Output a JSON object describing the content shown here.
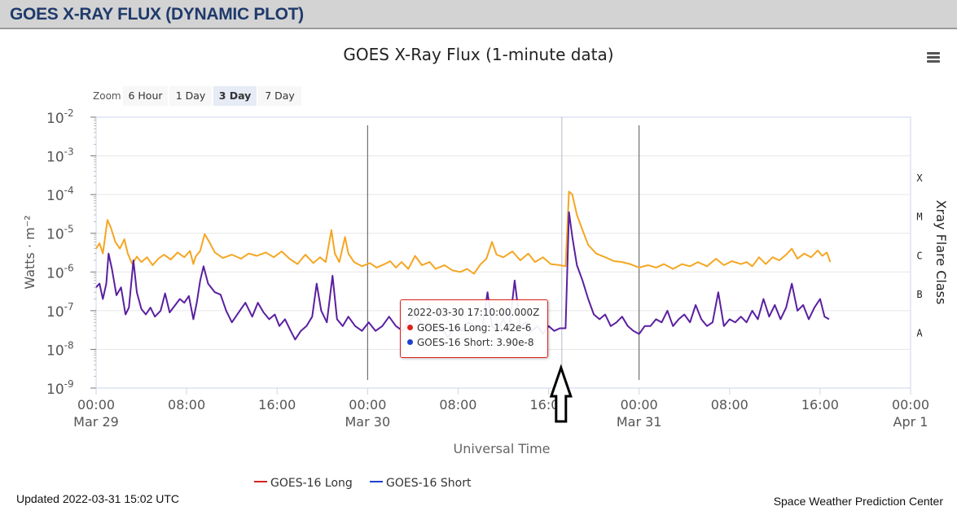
{
  "header": {
    "title": "GOES X-RAY FLUX (DYNAMIC PLOT)"
  },
  "zoom": {
    "label": "Zoom",
    "buttons": [
      {
        "label": "6 Hour",
        "active": false
      },
      {
        "label": "1 Day",
        "active": false
      },
      {
        "label": "3 Day",
        "active": true
      },
      {
        "label": "7 Day",
        "active": false
      }
    ]
  },
  "tooltip": {
    "time": "2022-03-30 17:10:00.000Z",
    "long_label": "GOES-16 Long",
    "long_value": ": 1.42e-6",
    "short_label": "GOES-16 Short",
    "short_value": ": 3.90e-8",
    "border_color": "#e0201a"
  },
  "footer": {
    "updated": "Updated 2022-03-31 15:02 UTC",
    "credit": "Space Weather Prediction Center"
  },
  "colors": {
    "long_active": "#f5a623",
    "long_legend": "#d62020",
    "short_active": "#5a1fa0",
    "short_legend": "#1f3fd0"
  },
  "chart_data": {
    "type": "line",
    "title": "GOES X-Ray Flux (1-minute data)",
    "xlabel": "Universal Time",
    "ylabel": "Watts · m⁻²",
    "y2label": "Xray Flare Class",
    "y_scale": "log",
    "ylim": [
      1e-09,
      0.01
    ],
    "y_ticks": [
      {
        "base": "10",
        "exp": "-2"
      },
      {
        "base": "10",
        "exp": "-3"
      },
      {
        "base": "10",
        "exp": "-4"
      },
      {
        "base": "10",
        "exp": "-5"
      },
      {
        "base": "10",
        "exp": "-6"
      },
      {
        "base": "10",
        "exp": "-7"
      },
      {
        "base": "10",
        "exp": "-8"
      },
      {
        "base": "10",
        "exp": "-9"
      }
    ],
    "flare_classes": [
      {
        "label": "X",
        "flux": 0.0001
      },
      {
        "label": "M",
        "flux": 1e-05
      },
      {
        "label": "C",
        "flux": 1e-06
      },
      {
        "label": "B",
        "flux": 1e-07
      },
      {
        "label": "A",
        "flux": 1e-08
      }
    ],
    "xlim_hours": [
      0,
      72
    ],
    "x_ticks": [
      {
        "hour": 0,
        "label": "00:00",
        "date": "Mar 29"
      },
      {
        "hour": 8,
        "label": "08:00",
        "date": ""
      },
      {
        "hour": 16,
        "label": "16:00",
        "date": ""
      },
      {
        "hour": 24,
        "label": "00:00",
        "date": "Mar 30"
      },
      {
        "hour": 32,
        "label": "08:00",
        "date": ""
      },
      {
        "hour": 40,
        "label": "16:00",
        "date": ""
      },
      {
        "hour": 48,
        "label": "00:00",
        "date": "Mar 31"
      },
      {
        "hour": 56,
        "label": "08:00",
        "date": ""
      },
      {
        "hour": 64,
        "label": "16:00",
        "date": ""
      },
      {
        "hour": 72,
        "label": "00:00",
        "date": "Apr 1"
      }
    ],
    "day_lines_hours": [
      24,
      48
    ],
    "crosshair_hour": 41.17,
    "series": [
      {
        "name": "GOES-16 Long",
        "points": [
          [
            0.0,
            4e-06
          ],
          [
            0.3,
            5.5e-06
          ],
          [
            0.6,
            3e-06
          ],
          [
            1.0,
            2.2e-05
          ],
          [
            1.3,
            1.4e-05
          ],
          [
            1.7,
            6e-06
          ],
          [
            2.1,
            4e-06
          ],
          [
            2.5,
            7e-06
          ],
          [
            2.8,
            3e-06
          ],
          [
            3.2,
            1.6e-06
          ],
          [
            3.6,
            2.5e-06
          ],
          [
            4.0,
            1.8e-06
          ],
          [
            4.5,
            2.4e-06
          ],
          [
            5.0,
            1.5e-06
          ],
          [
            5.5,
            2.2e-06
          ],
          [
            6.0,
            2.8e-06
          ],
          [
            6.6,
            2.1e-06
          ],
          [
            7.2,
            3.2e-06
          ],
          [
            7.8,
            2.4e-06
          ],
          [
            8.3,
            3.5e-06
          ],
          [
            8.6,
            1.6e-06
          ],
          [
            8.8,
            2.5e-06
          ],
          [
            9.2,
            3.5e-06
          ],
          [
            9.6,
            9.5e-06
          ],
          [
            10.0,
            6e-06
          ],
          [
            10.5,
            3.2e-06
          ],
          [
            11.2,
            2.3e-06
          ],
          [
            12.0,
            2.8e-06
          ],
          [
            12.8,
            2.2e-06
          ],
          [
            13.5,
            3e-06
          ],
          [
            14.2,
            2.6e-06
          ],
          [
            15.0,
            3.2e-06
          ],
          [
            15.7,
            2.4e-06
          ],
          [
            16.4,
            3.4e-06
          ],
          [
            17.1,
            2.2e-06
          ],
          [
            17.8,
            1.6e-06
          ],
          [
            18.5,
            2.8e-06
          ],
          [
            19.2,
            1.7e-06
          ],
          [
            19.8,
            2.4e-06
          ],
          [
            20.3,
            1.8e-06
          ],
          [
            20.8,
            1.2e-05
          ],
          [
            21.1,
            3e-06
          ],
          [
            21.5,
            1.8e-06
          ],
          [
            22.0,
            8e-06
          ],
          [
            22.3,
            3e-06
          ],
          [
            22.8,
            1.8e-06
          ],
          [
            23.5,
            1.4e-06
          ],
          [
            24.2,
            1.7e-06
          ],
          [
            24.8,
            1.3e-06
          ],
          [
            25.5,
            1.6e-06
          ],
          [
            26.0,
            1.9e-06
          ],
          [
            26.5,
            1.3e-06
          ],
          [
            27.0,
            1.8e-06
          ],
          [
            27.6,
            1.2e-06
          ],
          [
            28.2,
            2.6e-06
          ],
          [
            28.8,
            1.5e-06
          ],
          [
            29.5,
            1.8e-06
          ],
          [
            30.0,
            1.2e-06
          ],
          [
            30.8,
            1.5e-06
          ],
          [
            31.5,
            1.1e-06
          ],
          [
            32.2,
            1e-06
          ],
          [
            32.8,
            1.2e-06
          ],
          [
            33.4,
            9e-07
          ],
          [
            34.0,
            1.6e-06
          ],
          [
            34.5,
            2.2e-06
          ],
          [
            35.0,
            6e-06
          ],
          [
            35.4,
            2.8e-06
          ],
          [
            36.0,
            2.4e-06
          ],
          [
            36.8,
            3.4e-06
          ],
          [
            37.5,
            2e-06
          ],
          [
            38.2,
            3e-06
          ],
          [
            38.8,
            1.8e-06
          ],
          [
            39.5,
            2.4e-06
          ],
          [
            40.2,
            1.6e-06
          ],
          [
            41.0,
            1.5e-06
          ],
          [
            41.5,
            1.4e-06
          ],
          [
            41.8,
            0.00012
          ],
          [
            42.1,
            0.0001
          ],
          [
            42.5,
            3e-05
          ],
          [
            43.0,
            1.2e-05
          ],
          [
            43.5,
            5e-06
          ],
          [
            44.2,
            3e-06
          ],
          [
            45.0,
            2.4e-06
          ],
          [
            45.8,
            1.9e-06
          ],
          [
            46.5,
            1.8e-06
          ],
          [
            47.2,
            1.6e-06
          ],
          [
            48.0,
            1.3e-06
          ],
          [
            48.8,
            1.5e-06
          ],
          [
            49.5,
            1.3e-06
          ],
          [
            50.2,
            1.6e-06
          ],
          [
            51.0,
            1.2e-06
          ],
          [
            51.8,
            1.6e-06
          ],
          [
            52.5,
            1.4e-06
          ],
          [
            53.2,
            1.8e-06
          ],
          [
            54.0,
            1.4e-06
          ],
          [
            54.8,
            2.2e-06
          ],
          [
            55.5,
            1.5e-06
          ],
          [
            56.2,
            1.9e-06
          ],
          [
            57.0,
            1.6e-06
          ],
          [
            57.5,
            1.8e-06
          ],
          [
            58.0,
            1.4e-06
          ],
          [
            58.6,
            2.4e-06
          ],
          [
            59.2,
            1.6e-06
          ],
          [
            59.8,
            2.4e-06
          ],
          [
            60.4,
            2e-06
          ],
          [
            61.0,
            2.8e-06
          ],
          [
            61.5,
            4e-06
          ],
          [
            62.0,
            2.2e-06
          ],
          [
            62.6,
            3e-06
          ],
          [
            63.2,
            2.4e-06
          ],
          [
            63.8,
            3.6e-06
          ],
          [
            64.2,
            2.6e-06
          ],
          [
            64.6,
            3.2e-06
          ],
          [
            64.9,
            1.8e-06
          ]
        ]
      },
      {
        "name": "GOES-16 Short",
        "points": [
          [
            0.0,
            4e-07
          ],
          [
            0.3,
            5e-07
          ],
          [
            0.6,
            2e-07
          ],
          [
            0.9,
            5e-07
          ],
          [
            1.1,
            3e-06
          ],
          [
            1.4,
            1.2e-06
          ],
          [
            1.8,
            2.5e-07
          ],
          [
            2.2,
            4e-07
          ],
          [
            2.6,
            8e-08
          ],
          [
            2.9,
            1.2e-07
          ],
          [
            3.3,
            2e-06
          ],
          [
            3.6,
            3e-07
          ],
          [
            4.0,
            1.1e-07
          ],
          [
            4.4,
            8e-08
          ],
          [
            4.8,
            1.2e-07
          ],
          [
            5.2,
            7e-08
          ],
          [
            5.7,
            1e-07
          ],
          [
            6.1,
            2.8e-07
          ],
          [
            6.5,
            9e-08
          ],
          [
            7.0,
            1.4e-07
          ],
          [
            7.4,
            2e-07
          ],
          [
            7.8,
            1.6e-07
          ],
          [
            8.2,
            2.4e-07
          ],
          [
            8.6,
            6e-08
          ],
          [
            8.9,
            1.6e-07
          ],
          [
            9.2,
            6e-07
          ],
          [
            9.5,
            1.4e-06
          ],
          [
            9.9,
            5e-07
          ],
          [
            10.5,
            3e-07
          ],
          [
            11.0,
            2.6e-07
          ],
          [
            11.5,
            1e-07
          ],
          [
            12.0,
            5e-08
          ],
          [
            12.6,
            9e-08
          ],
          [
            13.2,
            1.6e-07
          ],
          [
            13.8,
            7e-08
          ],
          [
            14.3,
            1.6e-07
          ],
          [
            14.8,
            9e-08
          ],
          [
            15.3,
            6e-08
          ],
          [
            15.8,
            8e-08
          ],
          [
            16.2,
            4e-08
          ],
          [
            16.7,
            6e-08
          ],
          [
            17.2,
            3e-08
          ],
          [
            17.6,
            1.8e-08
          ],
          [
            18.1,
            3e-08
          ],
          [
            18.6,
            4e-08
          ],
          [
            19.1,
            7e-08
          ],
          [
            19.5,
            5e-07
          ],
          [
            19.9,
            1e-07
          ],
          [
            20.4,
            5e-08
          ],
          [
            20.9,
            8e-07
          ],
          [
            21.3,
            6e-08
          ],
          [
            21.8,
            4e-08
          ],
          [
            22.3,
            7e-08
          ],
          [
            22.9,
            4e-08
          ],
          [
            23.5,
            3e-08
          ],
          [
            24.1,
            5e-08
          ],
          [
            24.7,
            3e-08
          ],
          [
            25.3,
            4e-08
          ],
          [
            25.9,
            7e-08
          ],
          [
            26.5,
            4e-08
          ],
          [
            27.1,
            3e-08
          ],
          [
            27.6,
            5e-08
          ],
          [
            28.2,
            8e-08
          ],
          [
            28.7,
            5e-08
          ],
          [
            29.3,
            4e-08
          ],
          [
            29.9,
            3e-08
          ],
          [
            30.5,
            4e-08
          ],
          [
            31.1,
            2e-08
          ],
          [
            31.7,
            4e-08
          ],
          [
            32.3,
            3e-08
          ],
          [
            32.9,
            5e-08
          ],
          [
            33.5,
            4e-08
          ],
          [
            34.1,
            3e-08
          ],
          [
            34.6,
            3e-07
          ],
          [
            35.0,
            4e-08
          ],
          [
            35.5,
            3e-08
          ],
          [
            36.0,
            6e-08
          ],
          [
            36.5,
            3e-08
          ],
          [
            37.0,
            6e-07
          ],
          [
            37.5,
            4e-08
          ],
          [
            38.0,
            5e-08
          ],
          [
            38.5,
            3e-08
          ],
          [
            39.0,
            4e-08
          ],
          [
            39.5,
            2.5e-08
          ],
          [
            40.0,
            4e-08
          ],
          [
            40.5,
            3e-08
          ],
          [
            41.0,
            3.5e-08
          ],
          [
            41.5,
            3.5e-08
          ],
          [
            41.8,
            3.5e-05
          ],
          [
            42.1,
            8e-06
          ],
          [
            42.5,
            1.5e-06
          ],
          [
            43.0,
            6e-07
          ],
          [
            43.5,
            2e-07
          ],
          [
            44.0,
            8e-08
          ],
          [
            44.5,
            6e-08
          ],
          [
            45.0,
            8e-08
          ],
          [
            45.5,
            4e-08
          ],
          [
            46.0,
            5e-08
          ],
          [
            46.5,
            7e-08
          ],
          [
            47.0,
            4e-08
          ],
          [
            47.5,
            3e-08
          ],
          [
            48.0,
            2.5e-08
          ],
          [
            48.5,
            4e-08
          ],
          [
            49.0,
            4e-08
          ],
          [
            49.5,
            6e-08
          ],
          [
            50.0,
            5e-08
          ],
          [
            50.5,
            1e-07
          ],
          [
            51.0,
            4e-08
          ],
          [
            51.5,
            6e-08
          ],
          [
            52.0,
            8e-08
          ],
          [
            52.5,
            5e-08
          ],
          [
            53.0,
            1.4e-07
          ],
          [
            53.5,
            6e-08
          ],
          [
            54.0,
            4e-08
          ],
          [
            54.5,
            5e-08
          ],
          [
            55.0,
            3e-07
          ],
          [
            55.5,
            4e-08
          ],
          [
            56.0,
            6e-08
          ],
          [
            56.5,
            5e-08
          ],
          [
            57.0,
            7e-08
          ],
          [
            57.5,
            5e-08
          ],
          [
            58.0,
            1e-07
          ],
          [
            58.5,
            6e-08
          ],
          [
            59.0,
            2e-07
          ],
          [
            59.5,
            7e-08
          ],
          [
            60.0,
            1.4e-07
          ],
          [
            60.5,
            6e-08
          ],
          [
            61.0,
            1.2e-07
          ],
          [
            61.5,
            5e-07
          ],
          [
            62.0,
            1e-07
          ],
          [
            62.5,
            1.4e-07
          ],
          [
            63.0,
            6e-08
          ],
          [
            63.5,
            1.2e-07
          ],
          [
            64.0,
            2e-07
          ],
          [
            64.4,
            7e-08
          ],
          [
            64.8,
            6e-08
          ]
        ]
      }
    ]
  }
}
